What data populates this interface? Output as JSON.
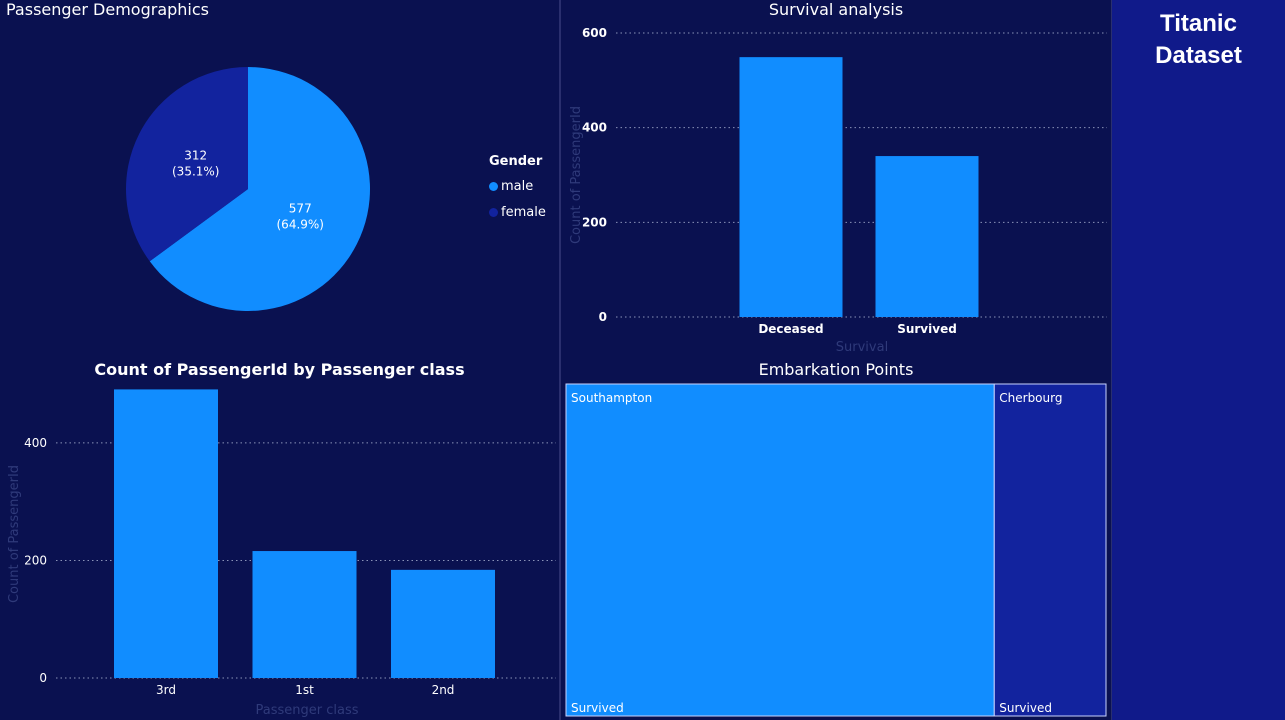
{
  "dashboard": {
    "title_line1": "Titanic",
    "title_line2": "Dataset"
  },
  "colors": {
    "background": "#0a1150",
    "side_panel": "#101a8a",
    "accent": "#118dff",
    "dark_blue": "#12239e"
  },
  "chart_data": [
    {
      "type": "pie",
      "title": "Passenger Demographics",
      "legend_title": "Gender",
      "legend_position": "right",
      "slices": [
        {
          "label": "male",
          "value": 577,
          "percent": "64.9%",
          "color": "#118dff"
        },
        {
          "label": "female",
          "value": 312,
          "percent": "35.1%",
          "color": "#12239e"
        }
      ]
    },
    {
      "type": "bar",
      "title": "Survival analysis",
      "categories": [
        "Deceased",
        "Survived"
      ],
      "values": [
        549,
        340
      ],
      "xlabel": "Survival",
      "ylabel": "Count of PassengerId",
      "ylim": [
        0,
        600
      ],
      "yticks": [
        0,
        200,
        400,
        600
      ],
      "grid": true
    },
    {
      "type": "bar",
      "title": "Count of PassengerId by Passenger class",
      "categories": [
        "3rd",
        "1st",
        "2nd"
      ],
      "values": [
        491,
        216,
        184
      ],
      "xlabel": "Passenger class",
      "ylabel": "Count of PassengerId",
      "ylim": [
        0,
        490
      ],
      "yticks": [
        0,
        200,
        400
      ],
      "grid": true
    },
    {
      "type": "treemap",
      "title": "Embarkation Points",
      "items": [
        {
          "label": "Southampton",
          "value": 644,
          "sublabel": "Survived",
          "color": "#118dff"
        },
        {
          "label": "Cherbourg",
          "value": 168,
          "sublabel": "Survived",
          "color": "#12239e"
        }
      ]
    }
  ]
}
